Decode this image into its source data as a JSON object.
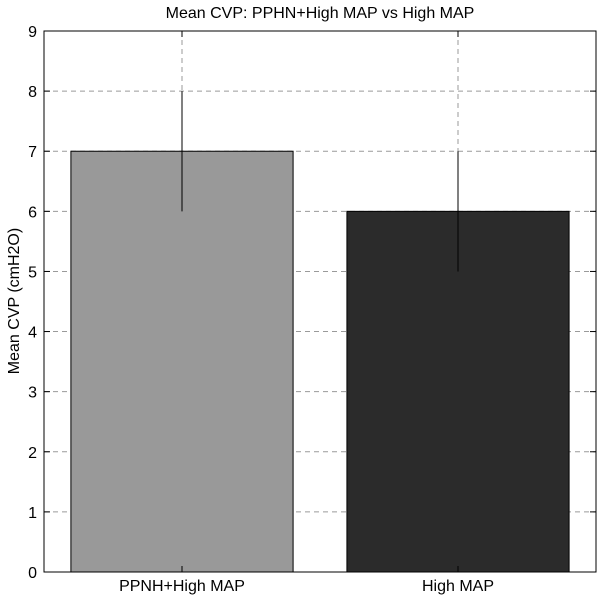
{
  "chart_data": {
    "type": "bar",
    "title": "Mean CVP: PPHN+High MAP vs High MAP",
    "xlabel": "",
    "ylabel": "Mean CVP (cmH2O)",
    "categories": [
      "PPNH+High MAP",
      "High MAP"
    ],
    "values": [
      7,
      6
    ],
    "errors": [
      1,
      1
    ],
    "bar_colors": [
      "#999999",
      "#2b2b2b"
    ],
    "ylim": [
      0,
      9
    ],
    "yticks": [
      0,
      1,
      2,
      3,
      4,
      5,
      6,
      7,
      8,
      9
    ],
    "grid": true,
    "legend": "none"
  }
}
